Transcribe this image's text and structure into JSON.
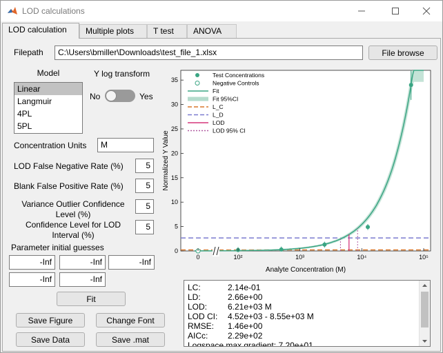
{
  "window": {
    "title": "LOD calculations"
  },
  "tabs": [
    {
      "label": "LOD calculation"
    },
    {
      "label": "Multiple plots"
    },
    {
      "label": "T test"
    },
    {
      "label": "ANOVA"
    }
  ],
  "filepath": {
    "label": "Filepath",
    "value": "C:\\Users\\bmiller\\Downloads\\test_file_1.xlsx",
    "browse_label": "File browse"
  },
  "model": {
    "label": "Model",
    "options": [
      "Linear",
      "Langmuir",
      "4PL",
      "5PL"
    ],
    "selected": "Linear"
  },
  "ylog": {
    "label": "Y log transform",
    "no_label": "No",
    "yes_label": "Yes",
    "state": "No"
  },
  "fields": {
    "conc_units": {
      "label": "Concentration Units",
      "value": "M"
    },
    "lod_fnr": {
      "label": "LOD False Negative Rate (%)",
      "value": "5"
    },
    "blank_fpr": {
      "label": "Blank False Positive Rate (%)",
      "value": "5"
    },
    "variance_conf": {
      "label_line1": "Variance Outlier Confidence",
      "label_line2": "Level (%)",
      "value": "5"
    },
    "conf_lod": {
      "label_line1": "Confidence Level for LOD",
      "label_line2": "Interval (%)",
      "value": "5"
    }
  },
  "params": {
    "label": "Parameter initial guesses",
    "values": [
      "-Inf",
      "-Inf",
      "-Inf",
      "-Inf",
      "-Inf"
    ]
  },
  "buttons": {
    "fit": "Fit",
    "save_figure": "Save Figure",
    "change_font": "Change Font",
    "save_data": "Save Data",
    "save_mat": "Save .mat"
  },
  "results": [
    {
      "key": "LC:",
      "value": "2.14e-01"
    },
    {
      "key": "LD:",
      "value": "2.66e+00"
    },
    {
      "key": "LOD:",
      "value": "6.21e+03 M"
    },
    {
      "key": "LOD CI:",
      "value": "4.52e+03 - 8.55e+03 M"
    },
    {
      "key": "RMSE:",
      "value": "1.46e+00"
    },
    {
      "key": "AICc:",
      "value": "2.29e+02"
    },
    {
      "key": "Logspace max gradient:",
      "value": "7.20e+01"
    }
  ],
  "colors": {
    "fit": "#3aa583",
    "fit_ci": "#b5dccd",
    "lc": "#d9772a",
    "ld": "#7b7bcf",
    "lod": "#d6357a",
    "lod_ci": "#b05aa0"
  },
  "chart_data": {
    "type": "scatter",
    "xlabel": "Analyte Concentration (M)",
    "ylabel": "Normalized Y Value",
    "x_scale": "log-with-zero-break",
    "x_ticks": [
      "0",
      "10²",
      "10³",
      "10⁴",
      "10⁵"
    ],
    "y_ticks": [
      "0",
      "5",
      "10",
      "15",
      "20",
      "25",
      "30",
      "35"
    ],
    "ylim": [
      0,
      37
    ],
    "legend": {
      "placement": "top-left",
      "entries": [
        "Test Concentrations",
        "Negative Controls",
        "Fit",
        "Fit 95%CI",
        "L_C",
        "L_D",
        "LOD",
        "LOD 95% CI"
      ]
    },
    "test_points": [
      {
        "x": 100,
        "y": 0.2
      },
      {
        "x": 500,
        "y": 0.3
      },
      {
        "x": 2500,
        "y": 1.3
      },
      {
        "x": 12500,
        "y": 4.9
      },
      {
        "x": 62500,
        "y": 34
      }
    ],
    "negative_controls": {
      "x": 0,
      "y": 0.0
    },
    "lc": 0.214,
    "ld": 2.66,
    "lod": 6210,
    "lod_ci": [
      4520,
      8550
    ]
  }
}
